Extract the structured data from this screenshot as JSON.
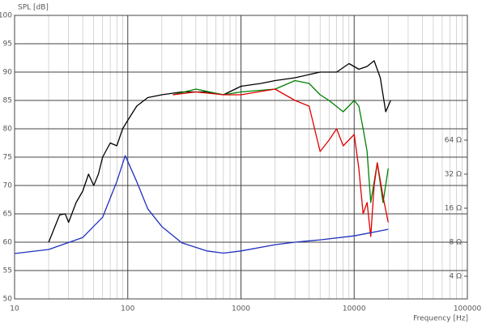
{
  "chart_data": {
    "type": "line",
    "y_label": "SPL [dB]",
    "x_label": "Frequency [Hz]",
    "xlog": true,
    "grid": true,
    "xlim": [
      10,
      100000
    ],
    "xticks": [
      10,
      100,
      1000,
      10000,
      100000
    ],
    "xminorticks": [
      20,
      30,
      40,
      50,
      60,
      70,
      80,
      90,
      200,
      300,
      400,
      500,
      600,
      700,
      800,
      900,
      2000,
      3000,
      4000,
      5000,
      6000,
      7000,
      8000,
      9000,
      20000,
      30000,
      40000,
      50000,
      60000,
      70000,
      80000,
      90000
    ],
    "ylim": [
      50,
      100
    ],
    "yticks": [
      50,
      55,
      60,
      65,
      70,
      75,
      80,
      85,
      90,
      95,
      100
    ],
    "y2log": true,
    "y2lim": [
      2.52,
      813
    ],
    "y2ticks": [
      {
        "value": 4,
        "label": "4 Ω"
      },
      {
        "value": 8,
        "label": "8 Ω"
      },
      {
        "value": 16,
        "label": "16 Ω"
      },
      {
        "value": 32,
        "label": "32 Ω"
      },
      {
        "value": 64,
        "label": "64 Ω"
      }
    ],
    "series": [
      {
        "color": "#000000",
        "x": [
          20,
          25,
          28,
          30,
          35,
          40,
          45,
          50,
          55,
          60,
          70,
          80,
          90,
          100,
          120,
          150,
          200,
          300,
          400,
          500,
          700,
          1000,
          1500,
          2000,
          3000,
          5000,
          7000,
          9000,
          11000,
          13000,
          15000,
          17000,
          19000,
          21000
        ],
        "values": [
          60,
          64.8,
          65,
          63.5,
          67,
          69,
          72,
          70,
          72,
          75,
          77.5,
          77,
          80,
          81.5,
          84,
          85.5,
          86,
          86.5,
          86.5,
          86.5,
          86,
          87.5,
          88,
          88.5,
          89,
          90,
          90,
          91.5,
          90.5,
          91,
          92,
          89,
          83,
          85
        ]
      },
      {
        "color": "#008000",
        "x": [
          250,
          400,
          700,
          1000,
          2000,
          3000,
          4000,
          5000,
          6000,
          8000,
          10000,
          11000,
          12000,
          13000,
          14000,
          16000,
          18000,
          20000
        ],
        "values": [
          86,
          87,
          86,
          86.5,
          87,
          88.5,
          88,
          86,
          85,
          83,
          85,
          84,
          80,
          76,
          67,
          74,
          67,
          73
        ]
      },
      {
        "color": "#e00000",
        "x": [
          250,
          400,
          700,
          1000,
          2000,
          3000,
          4000,
          5000,
          6000,
          7000,
          8000,
          10000,
          11000,
          12000,
          13000,
          14000,
          15000,
          16000,
          18000,
          20000
        ],
        "values": [
          86,
          86.5,
          86,
          86,
          87,
          85,
          84,
          76,
          78,
          80,
          77,
          79,
          73,
          65,
          67,
          61,
          70,
          74,
          68,
          63.5
        ]
      },
      {
        "color": "#2030c0",
        "axis": "y2",
        "x": [
          10,
          20,
          40,
          60,
          80,
          95,
          120,
          150,
          200,
          300,
          500,
          700,
          1000,
          2000,
          3000,
          5000,
          10000,
          20000
        ],
        "values": [
          6.35,
          6.9,
          8.8,
          13.3,
          27.5,
          46.6,
          27.5,
          15.8,
          11.0,
          7.9,
          6.7,
          6.4,
          6.7,
          7.6,
          8.0,
          8.4,
          9.1,
          10.4
        ]
      }
    ]
  }
}
